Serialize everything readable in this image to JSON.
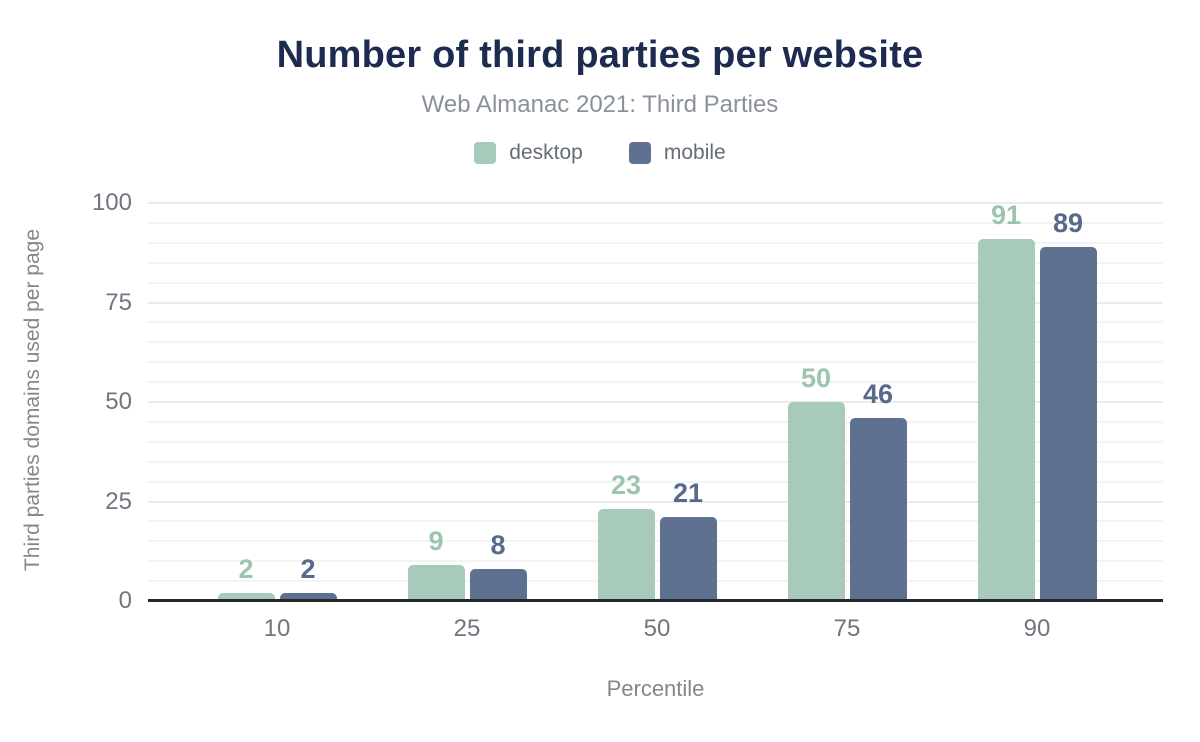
{
  "chart_data": {
    "type": "bar",
    "title": "Number of third parties per website",
    "subtitle": "Web Almanac 2021: Third Parties",
    "xlabel": "Percentile",
    "ylabel": "Third parties domains used per page",
    "categories": [
      "10",
      "25",
      "50",
      "75",
      "90"
    ],
    "series": [
      {
        "name": "desktop",
        "color": "#a8cabb",
        "label_color": "#9dc5ae",
        "values": [
          2,
          9,
          23,
          50,
          91
        ]
      },
      {
        "name": "mobile",
        "color": "#5f7190",
        "label_color": "#586a8c",
        "values": [
          2,
          8,
          21,
          46,
          89
        ]
      }
    ],
    "ylim": [
      0,
      100
    ],
    "yticks": [
      0,
      25,
      50,
      75,
      100
    ],
    "grid": "horizontal minor gridlines every 5 units, major every 25",
    "legend_position": "top-center",
    "data_labels": true,
    "colors": {
      "title": "#1d2b50",
      "subtitle": "#8b919c",
      "axis_text": "#70757e",
      "axis_title": "#83878e",
      "baseline": "#26272b"
    }
  }
}
